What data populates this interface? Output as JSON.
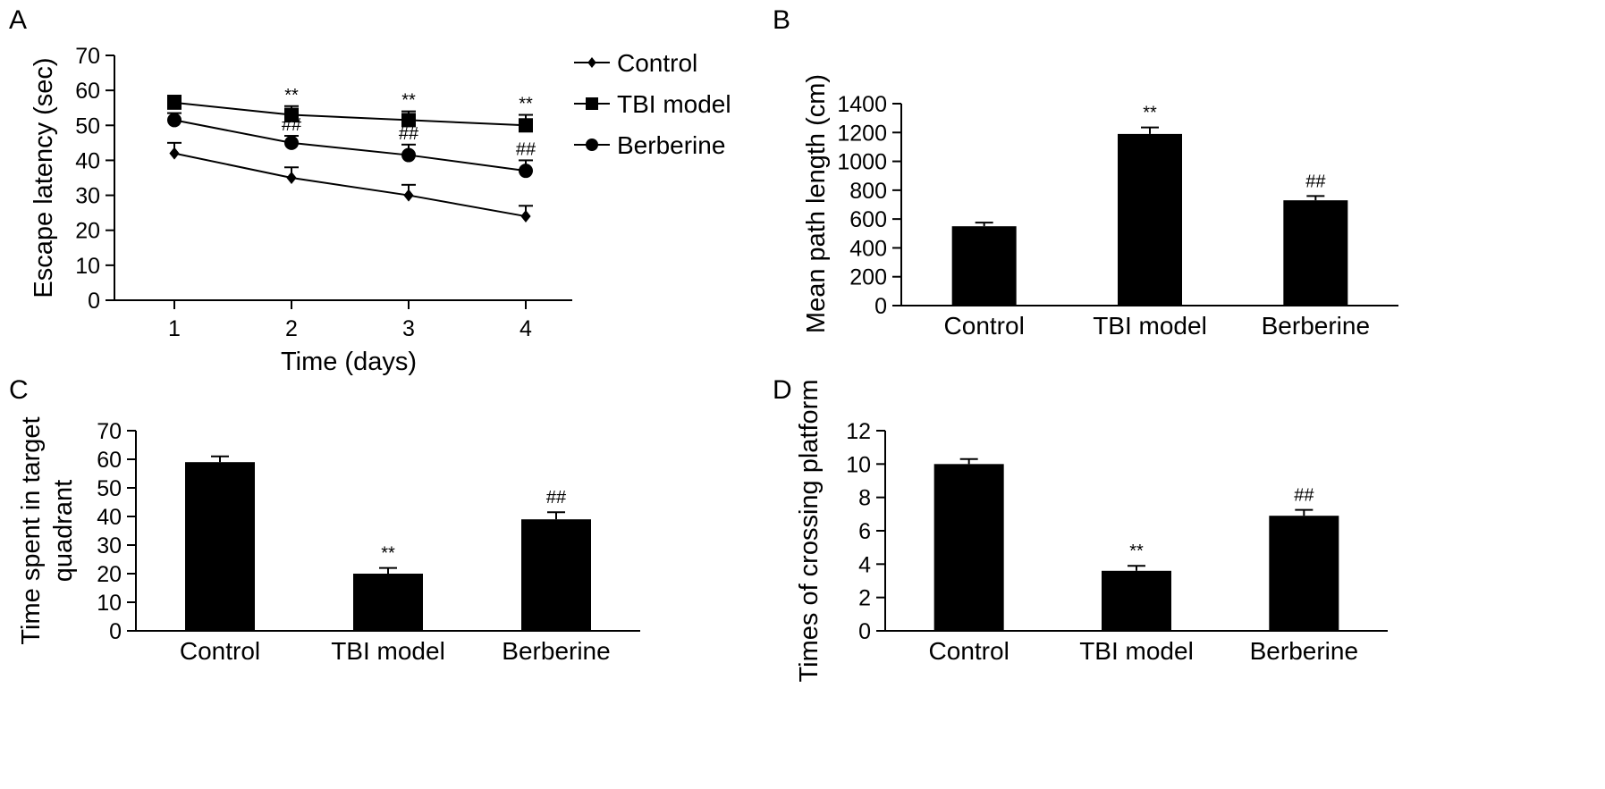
{
  "chart_data": [
    {
      "panel": "A",
      "type": "line",
      "xlabel": "Time (days)",
      "ylabel": "Escape latency (sec)",
      "ylim": [
        0,
        70
      ],
      "yticks": [
        "0",
        "10",
        "20",
        "30",
        "40",
        "50",
        "60",
        "70"
      ],
      "x": [
        1,
        2,
        3,
        4
      ],
      "xticks": [
        "1",
        "2",
        "3",
        "4"
      ],
      "legend_position": "top-right outside",
      "series": [
        {
          "name": "Control",
          "marker": "diamond",
          "values": [
            42,
            35,
            30,
            24
          ],
          "errors": [
            3,
            3,
            3,
            3
          ],
          "annotations": [
            "",
            "",
            "",
            ""
          ]
        },
        {
          "name": "TBI model",
          "marker": "square",
          "values": [
            56.5,
            53,
            51.5,
            50
          ],
          "errors": [
            2,
            2.5,
            2.5,
            3
          ],
          "annotations": [
            "",
            "**",
            "**",
            "**"
          ]
        },
        {
          "name": "Berberine",
          "marker": "circle",
          "values": [
            51.5,
            45,
            41.5,
            37
          ],
          "errors": [
            2,
            2,
            3,
            3
          ],
          "annotations": [
            "",
            "##",
            "##",
            "##"
          ]
        }
      ]
    },
    {
      "panel": "B",
      "type": "bar",
      "categories": [
        "Control",
        "TBI model",
        "Berberine"
      ],
      "values": [
        550,
        1190,
        730
      ],
      "errors": [
        25,
        45,
        30
      ],
      "annotations": [
        "",
        "**",
        "##"
      ],
      "ylabel": "Mean path length (cm)",
      "ylim": [
        0,
        1400
      ],
      "yticks": [
        "0",
        "200",
        "400",
        "600",
        "800",
        "1000",
        "1200",
        "1400"
      ]
    },
    {
      "panel": "C",
      "type": "bar",
      "categories": [
        "Control",
        "TBI model",
        "Berberine"
      ],
      "values": [
        59,
        20,
        39
      ],
      "errors": [
        2,
        2,
        2.5
      ],
      "annotations": [
        "",
        "**",
        "##"
      ],
      "ylabel": "Time spent in target quadrant",
      "ylim": [
        0,
        70
      ],
      "yticks": [
        "0",
        "10",
        "20",
        "30",
        "40",
        "50",
        "60",
        "70"
      ]
    },
    {
      "panel": "D",
      "type": "bar",
      "categories": [
        "Control",
        "TBI model",
        "Berberine"
      ],
      "values": [
        10,
        3.6,
        6.9
      ],
      "errors": [
        0.3,
        0.3,
        0.35
      ],
      "annotations": [
        "",
        "**",
        "##"
      ],
      "ylabel": "Times of crossing platform",
      "ylim": [
        0,
        12
      ],
      "yticks": [
        "0",
        "2",
        "4",
        "6",
        "8",
        "10",
        "12"
      ]
    }
  ]
}
